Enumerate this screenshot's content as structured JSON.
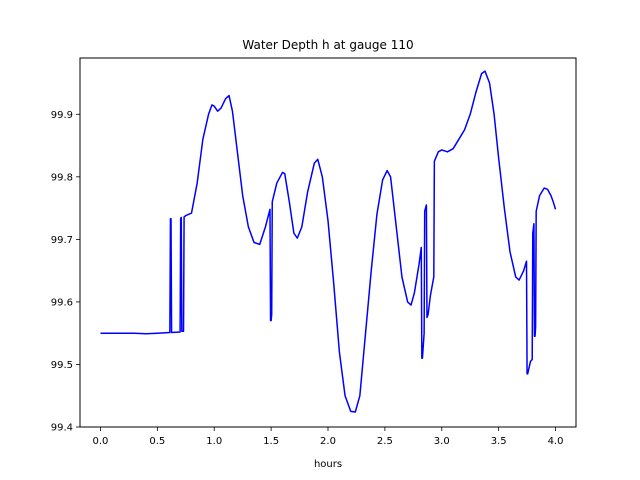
{
  "chart_data": {
    "type": "line",
    "title": "Water Depth h at gauge 110",
    "xlabel": "hours",
    "ylabel": "",
    "xlim": [
      -0.18,
      4.18
    ],
    "ylim": [
      99.4,
      99.99
    ],
    "x_ticks": [
      0.0,
      0.5,
      1.0,
      1.5,
      2.0,
      2.5,
      3.0,
      3.5,
      4.0
    ],
    "x_tick_labels": [
      "0.0",
      "0.5",
      "1.0",
      "1.5",
      "2.0",
      "2.5",
      "3.0",
      "3.5",
      "4.0"
    ],
    "y_ticks": [
      99.4,
      99.5,
      99.6,
      99.7,
      99.8,
      99.9
    ],
    "y_tick_labels": [
      "99.4",
      "99.5",
      "99.6",
      "99.7",
      "99.8",
      "99.9"
    ],
    "grid": false,
    "legend": "none",
    "series": [
      {
        "color": "#0000ff",
        "points": [
          [
            0.0,
            99.55
          ],
          [
            0.1,
            99.55
          ],
          [
            0.2,
            99.55
          ],
          [
            0.3,
            99.55
          ],
          [
            0.4,
            99.549
          ],
          [
            0.5,
            99.55
          ],
          [
            0.61,
            99.551
          ],
          [
            0.615,
            99.733
          ],
          [
            0.62,
            99.733
          ],
          [
            0.625,
            99.551
          ],
          [
            0.7,
            99.552
          ],
          [
            0.705,
            99.733
          ],
          [
            0.71,
            99.735
          ],
          [
            0.715,
            99.553
          ],
          [
            0.73,
            99.553
          ],
          [
            0.735,
            99.736
          ],
          [
            0.75,
            99.738
          ],
          [
            0.8,
            99.742
          ],
          [
            0.85,
            99.79
          ],
          [
            0.9,
            99.86
          ],
          [
            0.95,
            99.9
          ],
          [
            0.98,
            99.915
          ],
          [
            1.0,
            99.913
          ],
          [
            1.03,
            99.905
          ],
          [
            1.06,
            99.91
          ],
          [
            1.1,
            99.925
          ],
          [
            1.13,
            99.93
          ],
          [
            1.16,
            99.905
          ],
          [
            1.2,
            99.845
          ],
          [
            1.25,
            99.77
          ],
          [
            1.3,
            99.72
          ],
          [
            1.35,
            99.695
          ],
          [
            1.4,
            99.692
          ],
          [
            1.45,
            99.72
          ],
          [
            1.49,
            99.748
          ],
          [
            1.495,
            99.57
          ],
          [
            1.5,
            99.57
          ],
          [
            1.505,
            99.58
          ],
          [
            1.51,
            99.76
          ],
          [
            1.55,
            99.79
          ],
          [
            1.6,
            99.807
          ],
          [
            1.62,
            99.805
          ],
          [
            1.66,
            99.76
          ],
          [
            1.7,
            99.71
          ],
          [
            1.73,
            99.702
          ],
          [
            1.77,
            99.72
          ],
          [
            1.82,
            99.775
          ],
          [
            1.88,
            99.822
          ],
          [
            1.91,
            99.828
          ],
          [
            1.95,
            99.8
          ],
          [
            2.0,
            99.73
          ],
          [
            2.05,
            99.63
          ],
          [
            2.1,
            99.52
          ],
          [
            2.15,
            99.45
          ],
          [
            2.2,
            99.425
          ],
          [
            2.24,
            99.424
          ],
          [
            2.28,
            99.45
          ],
          [
            2.33,
            99.55
          ],
          [
            2.38,
            99.65
          ],
          [
            2.43,
            99.74
          ],
          [
            2.48,
            99.795
          ],
          [
            2.52,
            99.81
          ],
          [
            2.55,
            99.8
          ],
          [
            2.6,
            99.72
          ],
          [
            2.65,
            99.64
          ],
          [
            2.7,
            99.6
          ],
          [
            2.73,
            99.595
          ],
          [
            2.76,
            99.615
          ],
          [
            2.8,
            99.66
          ],
          [
            2.82,
            99.687
          ],
          [
            2.825,
            99.51
          ],
          [
            2.83,
            99.51
          ],
          [
            2.845,
            99.55
          ],
          [
            2.85,
            99.745
          ],
          [
            2.865,
            99.755
          ],
          [
            2.87,
            99.575
          ],
          [
            2.88,
            99.58
          ],
          [
            2.9,
            99.61
          ],
          [
            2.93,
            99.64
          ],
          [
            2.935,
            99.825
          ],
          [
            2.97,
            99.84
          ],
          [
            3.0,
            99.843
          ],
          [
            3.05,
            99.84
          ],
          [
            3.1,
            99.845
          ],
          [
            3.15,
            99.86
          ],
          [
            3.2,
            99.875
          ],
          [
            3.25,
            99.9
          ],
          [
            3.3,
            99.935
          ],
          [
            3.35,
            99.965
          ],
          [
            3.38,
            99.969
          ],
          [
            3.42,
            99.95
          ],
          [
            3.46,
            99.9
          ],
          [
            3.5,
            99.83
          ],
          [
            3.55,
            99.75
          ],
          [
            3.6,
            99.68
          ],
          [
            3.65,
            99.64
          ],
          [
            3.68,
            99.635
          ],
          [
            3.72,
            99.65
          ],
          [
            3.745,
            99.665
          ],
          [
            3.75,
            99.485
          ],
          [
            3.755,
            99.485
          ],
          [
            3.78,
            99.505
          ],
          [
            3.795,
            99.508
          ],
          [
            3.8,
            99.71
          ],
          [
            3.81,
            99.725
          ],
          [
            3.815,
            99.545
          ],
          [
            3.82,
            99.545
          ],
          [
            3.825,
            99.56
          ],
          [
            3.83,
            99.745
          ],
          [
            3.86,
            99.77
          ],
          [
            3.9,
            99.782
          ],
          [
            3.93,
            99.78
          ],
          [
            3.96,
            99.77
          ],
          [
            3.98,
            99.76
          ],
          [
            4.0,
            99.748
          ]
        ]
      }
    ]
  }
}
